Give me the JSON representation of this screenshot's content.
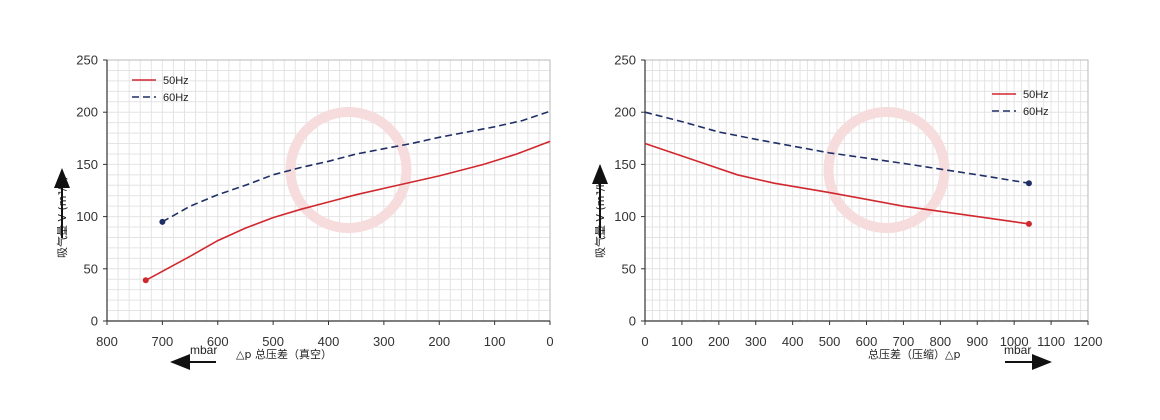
{
  "colors": {
    "series_50": "#d0282e",
    "series_60": "#1f2f66",
    "grid": "#e4e4e4"
  },
  "chart_data": [
    {
      "type": "line",
      "xlabel": "△p 总压差（真空）",
      "ylabel": "吸气量 V (m³/h)",
      "x_unit": "mbar",
      "xlim": [
        800,
        0
      ],
      "ylim": [
        0,
        250
      ],
      "x_ticks": [
        "800",
        "700",
        "600",
        "500",
        "400",
        "300",
        "200",
        "100",
        "0"
      ],
      "y_ticks": [
        "0",
        "50",
        "100",
        "150",
        "200",
        "250"
      ],
      "grid": true,
      "legend_position": "top-left",
      "series": [
        {
          "name": "50Hz",
          "style": "solid",
          "color": "#d0282e",
          "x": [
            730,
            650,
            600,
            550,
            500,
            450,
            400,
            350,
            300,
            250,
            200,
            120,
            60,
            0
          ],
          "y": [
            39,
            62,
            77,
            89,
            99,
            107,
            114,
            121,
            127,
            133,
            139,
            150,
            160,
            172
          ]
        },
        {
          "name": "60Hz",
          "style": "dashed",
          "color": "#1f2f66",
          "x": [
            700,
            650,
            600,
            550,
            500,
            450,
            400,
            350,
            300,
            250,
            200,
            100,
            50,
            0
          ],
          "y": [
            95,
            110,
            121,
            130,
            140,
            147,
            153,
            160,
            165,
            170,
            176,
            186,
            192,
            201
          ]
        }
      ]
    },
    {
      "type": "line",
      "xlabel": "总压差（压缩）△p",
      "ylabel": "吸气量 V (m³/h)",
      "x_unit": "mbar",
      "xlim": [
        0,
        1200
      ],
      "ylim": [
        0,
        250
      ],
      "x_ticks": [
        "0",
        "100",
        "200",
        "300",
        "400",
        "500",
        "600",
        "700",
        "800",
        "900",
        "1000",
        "1100",
        "1200"
      ],
      "y_ticks": [
        "0",
        "50",
        "100",
        "150",
        "200",
        "250"
      ],
      "grid": true,
      "legend_position": "top-right",
      "series": [
        {
          "name": "50Hz",
          "style": "solid",
          "color": "#d0282e",
          "x": [
            0,
            150,
            250,
            350,
            500,
            700,
            900,
            1040
          ],
          "y": [
            170,
            152,
            140,
            132,
            123,
            110,
            100,
            93
          ]
        },
        {
          "name": "60Hz",
          "style": "dashed",
          "color": "#1f2f66",
          "x": [
            0,
            100,
            200,
            300,
            500,
            700,
            900,
            1040
          ],
          "y": [
            200,
            191,
            181,
            174,
            161,
            151,
            140,
            132
          ]
        }
      ]
    }
  ]
}
